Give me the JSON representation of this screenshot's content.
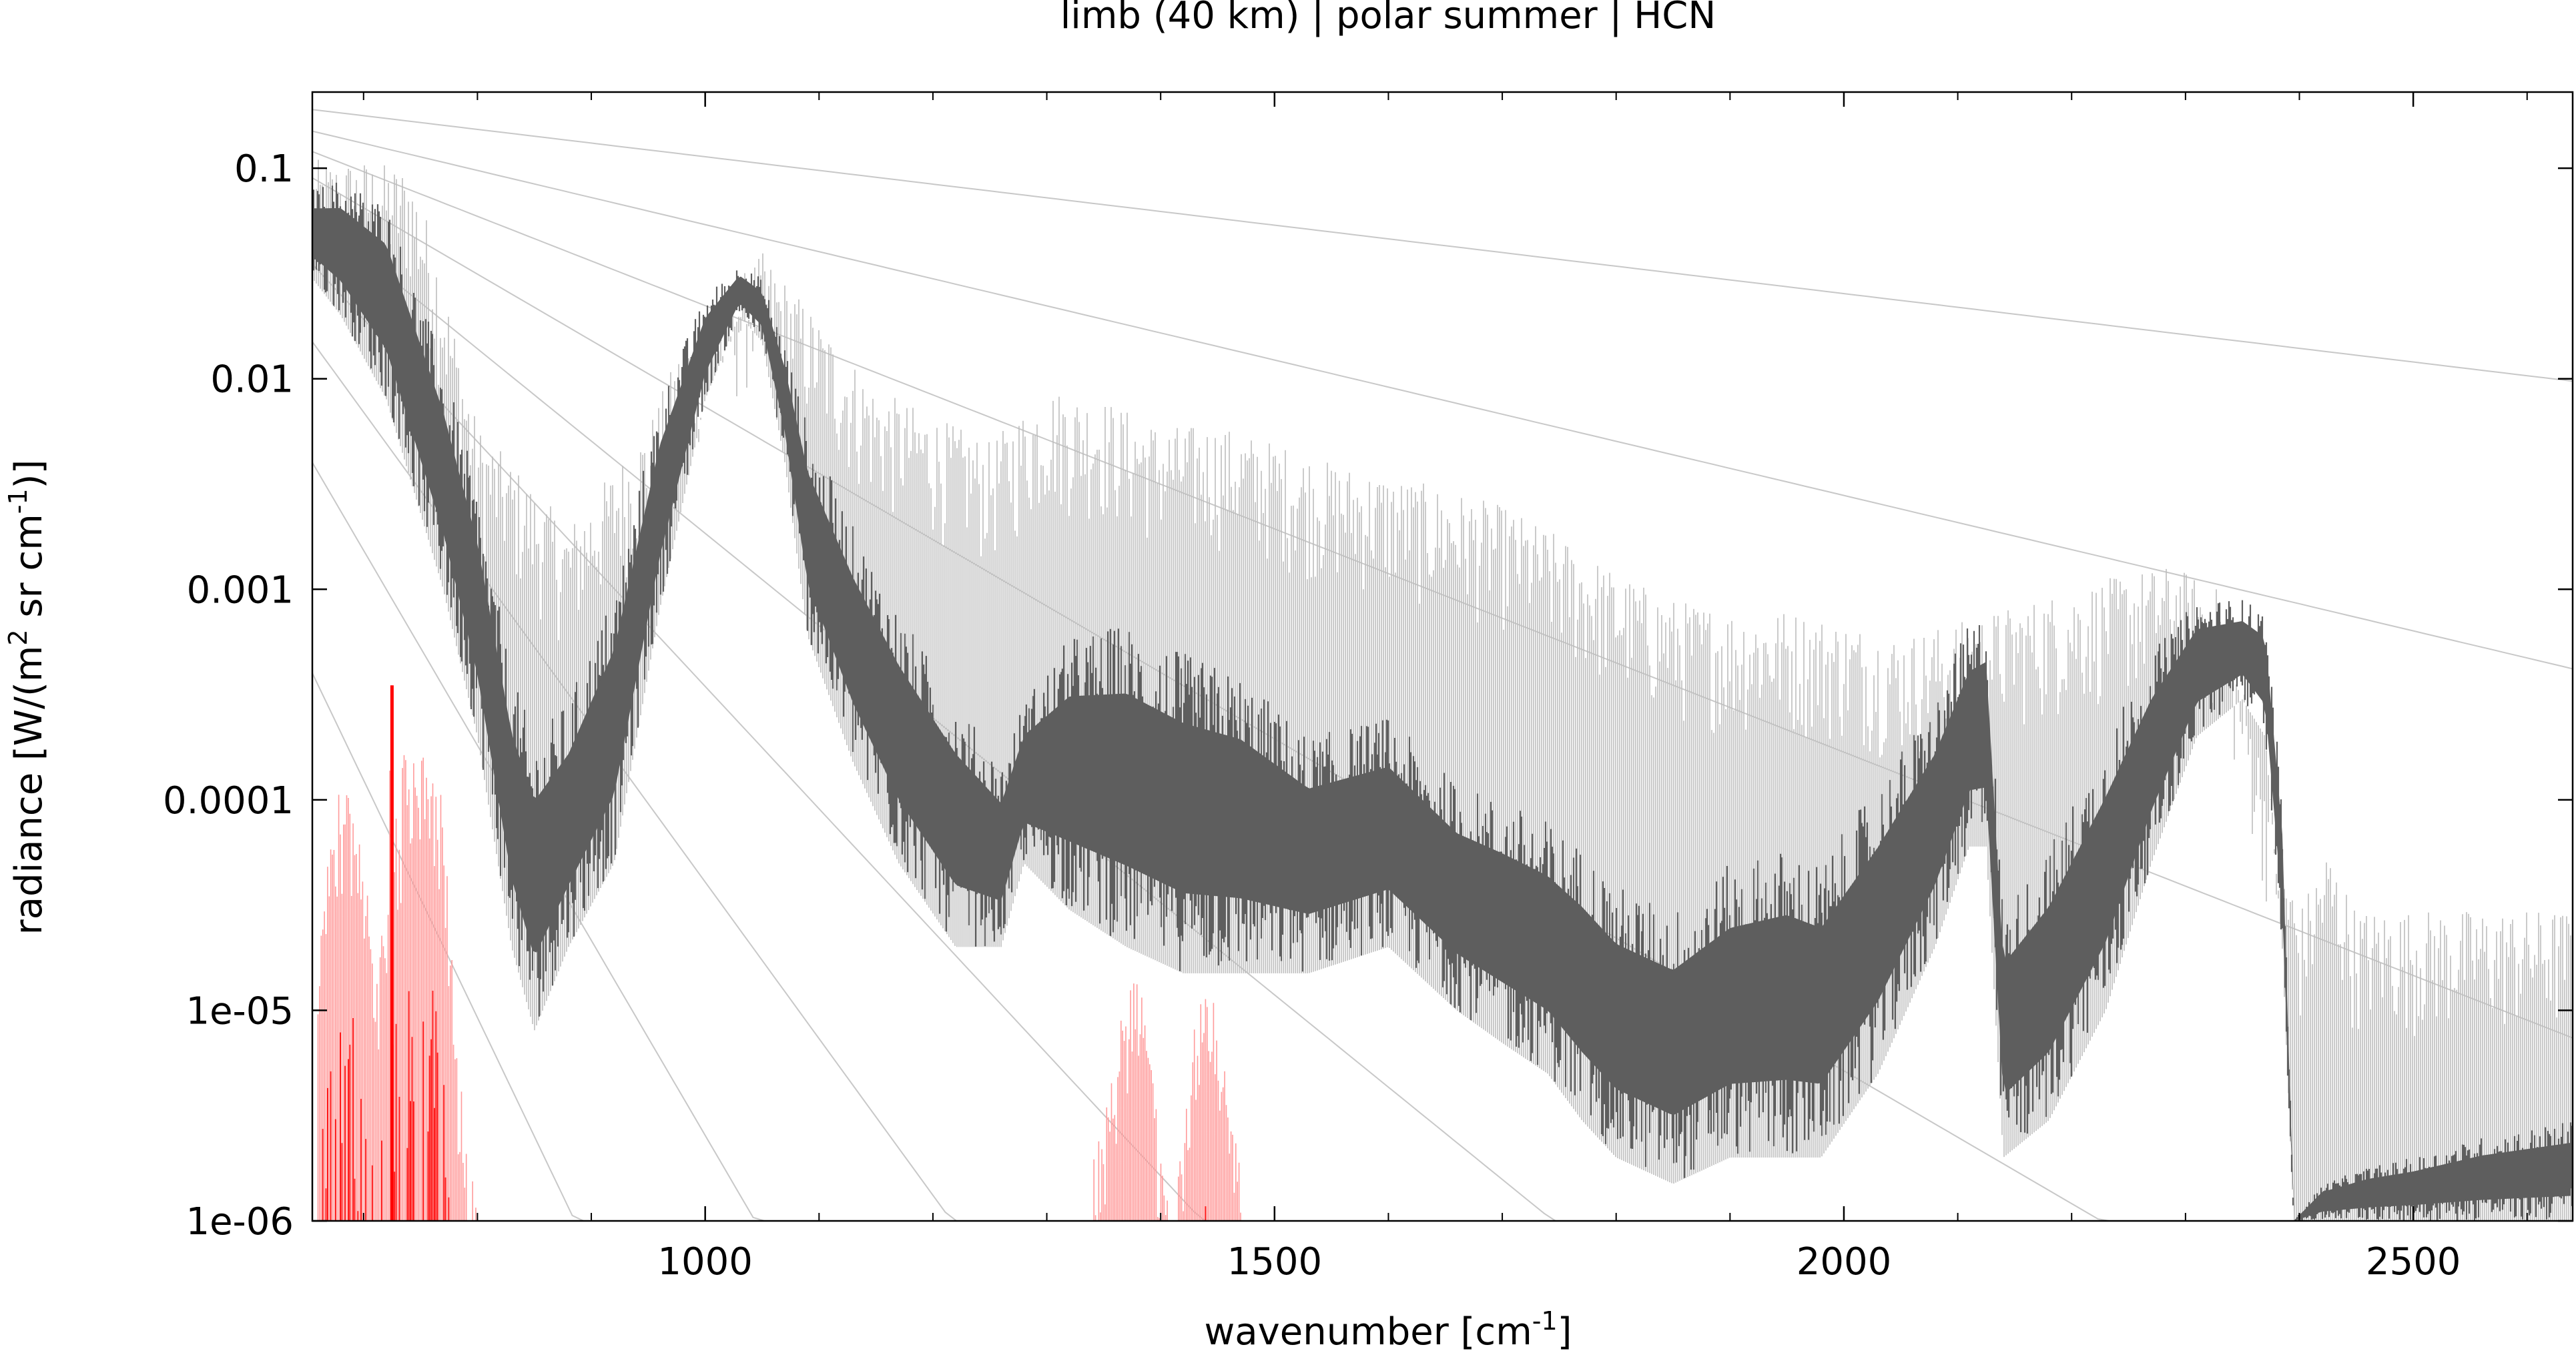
{
  "colors": {
    "main": "#5e5e5e",
    "envelope": "#bdbdbd",
    "red": "#ff0000",
    "red_light": "#ff9a9a",
    "planck": "#c8c8c8",
    "frame": "#000000"
  },
  "chart_data": {
    "type": "line",
    "title": "limb (40 km) | polar summer | HCN",
    "xlabel": "wavenumber [cm-1]",
    "ylabel": "radiance [W/(m2 sr cm-1)]",
    "xlim": [
      655,
      2640
    ],
    "ylim": [
      1e-06,
      0.23
    ],
    "y_scale": "log",
    "grid": false,
    "x_ticks": [
      {
        "value": 1000,
        "label": "1000"
      },
      {
        "value": 1500,
        "label": "1500"
      },
      {
        "value": 2000,
        "label": "2000"
      },
      {
        "value": 2500,
        "label": "2500"
      }
    ],
    "y_ticks": [
      {
        "value": 0.1,
        "label": "0.1"
      },
      {
        "value": 0.01,
        "label": "0.01"
      },
      {
        "value": 0.001,
        "label": "0.001"
      },
      {
        "value": 0.0001,
        "label": "0.0001"
      },
      {
        "value": 1e-05,
        "label": "1e-05"
      },
      {
        "value": 1e-06,
        "label": "1e-06"
      }
    ],
    "series": [
      {
        "style": "filled-dark-band",
        "x": [
          655,
          680,
          720,
          770,
          800,
          830,
          850,
          880,
          920,
          960,
          1000,
          1030,
          1050,
          1070,
          1090,
          1130,
          1170,
          1220,
          1260,
          1280,
          1320,
          1370,
          1420,
          1470,
          1530,
          1600,
          1660,
          1700,
          1740,
          1770,
          1800,
          1850,
          1900,
          1950,
          1980,
          2030,
          2080,
          2110,
          2125,
          2140,
          2180,
          2230,
          2270,
          2310,
          2350,
          2370,
          2385,
          2395,
          2420,
          2460,
          2500,
          2560,
          2640
        ],
        "upper": [
          0.08,
          0.09,
          0.07,
          0.012,
          0.003,
          0.0004,
          0.0002,
          0.0003,
          0.001,
          0.008,
          0.025,
          0.035,
          0.03,
          0.015,
          0.006,
          0.002,
          0.0008,
          0.0003,
          0.00015,
          0.0003,
          0.0006,
          0.0007,
          0.0005,
          0.0004,
          0.0002,
          0.00025,
          0.00012,
          0.0001,
          8e-05,
          6e-05,
          4e-05,
          3e-05,
          5e-05,
          6e-05,
          5e-05,
          0.00012,
          0.0003,
          0.0007,
          0.0008,
          3e-05,
          6e-05,
          0.0002,
          0.0005,
          0.0009,
          0.0009,
          0.0008,
          0.0001,
          1e-06,
          1.5e-06,
          1.8e-06,
          2e-06,
          2.5e-06,
          3e-06
        ],
        "lower": [
          0.03,
          0.02,
          0.008,
          0.001,
          0.0002,
          2e-05,
          8e-06,
          2e-05,
          5e-05,
          0.0008,
          0.008,
          0.02,
          0.015,
          0.004,
          0.0006,
          0.00015,
          5e-05,
          2e-05,
          2e-05,
          5e-05,
          3e-05,
          2e-05,
          1.5e-05,
          1.5e-05,
          1.5e-05,
          2e-05,
          1e-05,
          7e-06,
          5e-06,
          3e-06,
          2e-06,
          1.5e-06,
          2e-06,
          2e-06,
          2e-06,
          5e-06,
          2e-05,
          6e-05,
          6e-05,
          2e-06,
          3e-06,
          1e-05,
          5e-05,
          0.0002,
          0.0003,
          0.0002,
          2e-05,
          1e-06,
          1e-06,
          1e-06,
          1e-06,
          1e-06,
          1e-06
        ]
      },
      {
        "style": "light-peaks",
        "x": [
          700,
          740,
          760,
          800,
          880,
          950,
          980,
          1050,
          1150,
          1250,
          1300,
          1350,
          1400,
          1450,
          1500,
          1550,
          1600,
          1650,
          1700,
          1750,
          1800,
          1850,
          1900,
          1950,
          2000,
          2050,
          2100,
          2250,
          2290,
          2330,
          2400,
          2425,
          2450
        ],
        "y": [
          0.11,
          0.1,
          0.05,
          0.006,
          0.002,
          0.006,
          0.015,
          0.04,
          0.009,
          0.005,
          0.009,
          0.008,
          0.006,
          0.006,
          0.005,
          0.004,
          0.0035,
          0.003,
          0.0025,
          0.0018,
          0.0012,
          0.0009,
          0.0008,
          0.0008,
          0.0007,
          0.0006,
          0.0007,
          0.0012,
          0.0013,
          0.001,
          3e-05,
          6e-05,
          3e-05
        ]
      },
      {
        "style": "red-lines",
        "x": [
          660,
          670,
          680,
          690,
          700,
          710,
          720,
          725,
          730,
          735,
          740,
          750,
          760,
          770,
          780,
          790,
          800
        ],
        "upper": [
          3e-05,
          6e-05,
          0.00012,
          0.0001,
          6e-05,
          1.4e-05,
          4e-05,
          0.00035,
          5e-05,
          0.00018,
          0.00019,
          0.00018,
          0.00016,
          0.0001,
          1e-05,
          3e-06,
          1e-06
        ]
      },
      {
        "style": "red-lines",
        "x": [
          1340,
          1355,
          1370,
          1380,
          1390,
          1400,
          1410,
          1420,
          1430,
          1440,
          1450,
          1460,
          1475
        ],
        "upper": [
          2e-06,
          5e-06,
          1.2e-05,
          1.5e-05,
          8e-06,
          2e-06,
          1e-06,
          3e-06,
          1e-05,
          1.4e-05,
          1e-05,
          5e-06,
          1e-06
        ]
      }
    ],
    "planck_curves": [
      0.19,
      0.15,
      0.12,
      0.09,
      0.06,
      0.035,
      0.015,
      0.004,
      0.0004
    ]
  }
}
